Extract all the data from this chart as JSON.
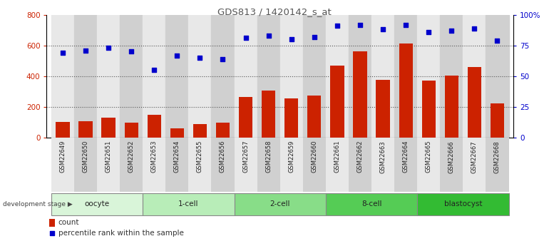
{
  "title": "GDS813 / 1420142_s_at",
  "samples": [
    "GSM22649",
    "GSM22650",
    "GSM22651",
    "GSM22652",
    "GSM22653",
    "GSM22654",
    "GSM22655",
    "GSM22656",
    "GSM22657",
    "GSM22658",
    "GSM22659",
    "GSM22660",
    "GSM22661",
    "GSM22662",
    "GSM22663",
    "GSM22664",
    "GSM22665",
    "GSM22666",
    "GSM22667",
    "GSM22668"
  ],
  "counts": [
    105,
    107,
    130,
    100,
    150,
    60,
    90,
    100,
    265,
    305,
    255,
    275,
    470,
    560,
    375,
    615,
    370,
    405,
    460,
    225
  ],
  "percentiles": [
    69,
    71,
    73,
    70,
    55,
    67,
    65,
    64,
    81,
    83,
    80,
    82,
    91,
    92,
    88,
    92,
    86,
    87,
    89,
    79
  ],
  "groups": [
    {
      "label": "oocyte",
      "start": 0,
      "end": 4,
      "color": "#d9f5d9"
    },
    {
      "label": "1-cell",
      "start": 4,
      "end": 8,
      "color": "#b8edb8"
    },
    {
      "label": "2-cell",
      "start": 8,
      "end": 12,
      "color": "#88dd88"
    },
    {
      "label": "8-cell",
      "start": 12,
      "end": 16,
      "color": "#55cc55"
    },
    {
      "label": "blastocyst",
      "start": 16,
      "end": 20,
      "color": "#33bb33"
    }
  ],
  "bar_color": "#cc2200",
  "dot_color": "#0000cc",
  "left_ylim": [
    0,
    800
  ],
  "right_ylim": [
    0,
    100
  ],
  "left_yticks": [
    0,
    200,
    400,
    600,
    800
  ],
  "right_yticks": [
    0,
    25,
    50,
    75,
    100
  ],
  "right_yticklabels": [
    "0",
    "25",
    "50",
    "75",
    "100%"
  ],
  "col_bg_even": "#e8e8e8",
  "col_bg_odd": "#d0d0d0",
  "bg_color": "#ffffff",
  "grid_color": "#555555",
  "title_color": "#555555",
  "axis_color": "#333333"
}
